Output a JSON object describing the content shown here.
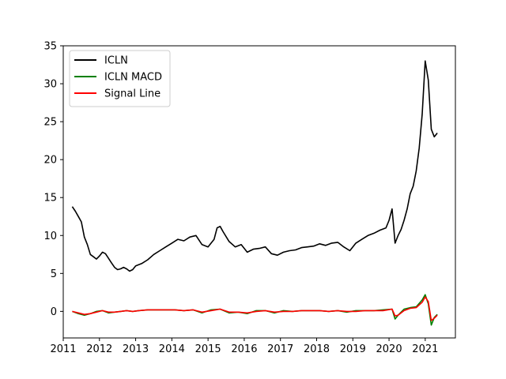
{
  "chart_data": {
    "type": "line",
    "title": "",
    "xlabel": "",
    "ylabel": "",
    "xlim": [
      "2011-01",
      "2021-11"
    ],
    "ylim": [
      -3.5,
      35
    ],
    "x_ticks": [
      "2011",
      "2012",
      "2013",
      "2014",
      "2015",
      "2016",
      "2017",
      "2018",
      "2019",
      "2020",
      "2021"
    ],
    "y_ticks": [
      0,
      5,
      10,
      15,
      20,
      25,
      30,
      35
    ],
    "grid": false,
    "legend_position": "upper-left",
    "series": [
      {
        "name": "ICLN",
        "color": "#000000",
        "points": [
          [
            "2011-04",
            13.8
          ],
          [
            "2011-05",
            13.2
          ],
          [
            "2011-06",
            12.5
          ],
          [
            "2011-07",
            11.8
          ],
          [
            "2011-08",
            9.8
          ],
          [
            "2011-09",
            8.8
          ],
          [
            "2011-10",
            7.5
          ],
          [
            "2011-11",
            7.2
          ],
          [
            "2011-12",
            6.9
          ],
          [
            "2012-01",
            7.3
          ],
          [
            "2012-02",
            7.8
          ],
          [
            "2012-03",
            7.6
          ],
          [
            "2012-04",
            7.0
          ],
          [
            "2012-05",
            6.4
          ],
          [
            "2012-06",
            5.8
          ],
          [
            "2012-07",
            5.5
          ],
          [
            "2012-08",
            5.6
          ],
          [
            "2012-09",
            5.8
          ],
          [
            "2012-10",
            5.6
          ],
          [
            "2012-11",
            5.3
          ],
          [
            "2012-12",
            5.5
          ],
          [
            "2013-01",
            6.0
          ],
          [
            "2013-03",
            6.3
          ],
          [
            "2013-05",
            6.8
          ],
          [
            "2013-07",
            7.5
          ],
          [
            "2013-09",
            8.0
          ],
          [
            "2013-11",
            8.5
          ],
          [
            "2014-01",
            9.0
          ],
          [
            "2014-03",
            9.5
          ],
          [
            "2014-05",
            9.3
          ],
          [
            "2014-07",
            9.8
          ],
          [
            "2014-09",
            10.0
          ],
          [
            "2014-11",
            8.8
          ],
          [
            "2015-01",
            8.5
          ],
          [
            "2015-03",
            9.5
          ],
          [
            "2015-04",
            11.0
          ],
          [
            "2015-05",
            11.2
          ],
          [
            "2015-06",
            10.5
          ],
          [
            "2015-08",
            9.2
          ],
          [
            "2015-10",
            8.5
          ],
          [
            "2015-12",
            8.8
          ],
          [
            "2016-02",
            7.8
          ],
          [
            "2016-04",
            8.2
          ],
          [
            "2016-06",
            8.3
          ],
          [
            "2016-08",
            8.5
          ],
          [
            "2016-10",
            7.6
          ],
          [
            "2016-12",
            7.4
          ],
          [
            "2017-02",
            7.8
          ],
          [
            "2017-04",
            8.0
          ],
          [
            "2017-06",
            8.1
          ],
          [
            "2017-08",
            8.4
          ],
          [
            "2017-10",
            8.5
          ],
          [
            "2017-12",
            8.6
          ],
          [
            "2018-02",
            8.9
          ],
          [
            "2018-04",
            8.7
          ],
          [
            "2018-06",
            9.0
          ],
          [
            "2018-08",
            9.1
          ],
          [
            "2018-10",
            8.5
          ],
          [
            "2018-12",
            8.0
          ],
          [
            "2019-02",
            9.0
          ],
          [
            "2019-04",
            9.5
          ],
          [
            "2019-06",
            10.0
          ],
          [
            "2019-08",
            10.3
          ],
          [
            "2019-10",
            10.7
          ],
          [
            "2019-12",
            11.0
          ],
          [
            "2020-01",
            12.0
          ],
          [
            "2020-02",
            13.5
          ],
          [
            "2020-03",
            9.0
          ],
          [
            "2020-04",
            10.0
          ],
          [
            "2020-05",
            10.8
          ],
          [
            "2020-06",
            12.0
          ],
          [
            "2020-07",
            13.5
          ],
          [
            "2020-08",
            15.5
          ],
          [
            "2020-09",
            16.5
          ],
          [
            "2020-10",
            18.5
          ],
          [
            "2020-11",
            21.5
          ],
          [
            "2020-12",
            26.0
          ],
          [
            "2021-01",
            33.0
          ],
          [
            "2021-02",
            30.5
          ],
          [
            "2021-03",
            24.0
          ],
          [
            "2021-04",
            23.0
          ],
          [
            "2021-05",
            23.5
          ]
        ]
      },
      {
        "name": "ICLN MACD",
        "color": "#008000",
        "points": [
          [
            "2011-04",
            0.0
          ],
          [
            "2011-06",
            -0.3
          ],
          [
            "2011-08",
            -0.5
          ],
          [
            "2011-10",
            -0.3
          ],
          [
            "2011-12",
            0.0
          ],
          [
            "2012-02",
            0.1
          ],
          [
            "2012-04",
            -0.2
          ],
          [
            "2012-06",
            -0.1
          ],
          [
            "2012-08",
            0.0
          ],
          [
            "2012-10",
            0.1
          ],
          [
            "2012-12",
            0.0
          ],
          [
            "2013-02",
            0.1
          ],
          [
            "2013-05",
            0.2
          ],
          [
            "2013-08",
            0.2
          ],
          [
            "2013-11",
            0.2
          ],
          [
            "2014-02",
            0.2
          ],
          [
            "2014-05",
            0.1
          ],
          [
            "2014-08",
            0.2
          ],
          [
            "2014-11",
            -0.2
          ],
          [
            "2015-02",
            0.2
          ],
          [
            "2015-05",
            0.3
          ],
          [
            "2015-08",
            -0.2
          ],
          [
            "2015-11",
            -0.1
          ],
          [
            "2016-02",
            -0.3
          ],
          [
            "2016-05",
            0.1
          ],
          [
            "2016-08",
            0.1
          ],
          [
            "2016-11",
            -0.2
          ],
          [
            "2017-02",
            0.1
          ],
          [
            "2017-05",
            0.0
          ],
          [
            "2017-08",
            0.1
          ],
          [
            "2017-11",
            0.1
          ],
          [
            "2018-02",
            0.1
          ],
          [
            "2018-05",
            0.0
          ],
          [
            "2018-08",
            0.1
          ],
          [
            "2018-11",
            -0.1
          ],
          [
            "2019-02",
            0.1
          ],
          [
            "2019-05",
            0.1
          ],
          [
            "2019-08",
            0.1
          ],
          [
            "2019-11",
            0.2
          ],
          [
            "2020-02",
            0.3
          ],
          [
            "2020-03",
            -1.0
          ],
          [
            "2020-04",
            -0.5
          ],
          [
            "2020-06",
            0.3
          ],
          [
            "2020-08",
            0.5
          ],
          [
            "2020-10",
            0.6
          ],
          [
            "2020-12",
            1.5
          ],
          [
            "2021-01",
            2.2
          ],
          [
            "2021-02",
            1.0
          ],
          [
            "2021-03",
            -1.8
          ],
          [
            "2021-04",
            -0.8
          ],
          [
            "2021-05",
            -0.4
          ]
        ]
      },
      {
        "name": "Signal Line",
        "color": "#ff0000",
        "points": [
          [
            "2011-04",
            0.0
          ],
          [
            "2011-06",
            -0.2
          ],
          [
            "2011-08",
            -0.4
          ],
          [
            "2011-10",
            -0.3
          ],
          [
            "2011-12",
            -0.1
          ],
          [
            "2012-02",
            0.1
          ],
          [
            "2012-04",
            -0.1
          ],
          [
            "2012-06",
            -0.1
          ],
          [
            "2012-08",
            0.0
          ],
          [
            "2012-10",
            0.1
          ],
          [
            "2012-12",
            0.0
          ],
          [
            "2013-02",
            0.1
          ],
          [
            "2013-05",
            0.2
          ],
          [
            "2013-08",
            0.2
          ],
          [
            "2013-11",
            0.2
          ],
          [
            "2014-02",
            0.2
          ],
          [
            "2014-05",
            0.1
          ],
          [
            "2014-08",
            0.2
          ],
          [
            "2014-11",
            -0.1
          ],
          [
            "2015-02",
            0.1
          ],
          [
            "2015-05",
            0.3
          ],
          [
            "2015-08",
            -0.1
          ],
          [
            "2015-11",
            -0.1
          ],
          [
            "2016-02",
            -0.2
          ],
          [
            "2016-05",
            0.0
          ],
          [
            "2016-08",
            0.1
          ],
          [
            "2016-11",
            -0.1
          ],
          [
            "2017-02",
            0.0
          ],
          [
            "2017-05",
            0.0
          ],
          [
            "2017-08",
            0.1
          ],
          [
            "2017-11",
            0.1
          ],
          [
            "2018-02",
            0.1
          ],
          [
            "2018-05",
            0.0
          ],
          [
            "2018-08",
            0.1
          ],
          [
            "2018-11",
            0.0
          ],
          [
            "2019-02",
            0.0
          ],
          [
            "2019-05",
            0.1
          ],
          [
            "2019-08",
            0.1
          ],
          [
            "2019-11",
            0.1
          ],
          [
            "2020-02",
            0.3
          ],
          [
            "2020-03",
            -0.6
          ],
          [
            "2020-04",
            -0.5
          ],
          [
            "2020-06",
            0.1
          ],
          [
            "2020-08",
            0.4
          ],
          [
            "2020-10",
            0.5
          ],
          [
            "2020-12",
            1.2
          ],
          [
            "2021-01",
            1.9
          ],
          [
            "2021-02",
            1.3
          ],
          [
            "2021-03",
            -1.2
          ],
          [
            "2021-04",
            -0.9
          ],
          [
            "2021-05",
            -0.5
          ]
        ]
      }
    ]
  }
}
